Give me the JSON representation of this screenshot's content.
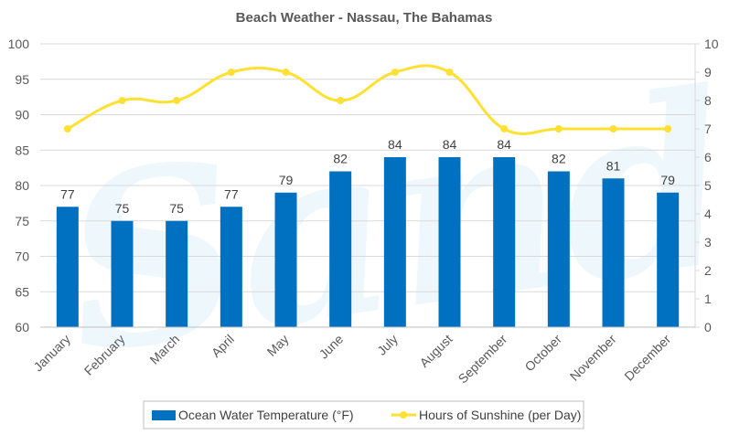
{
  "chart_data": {
    "type": "bar+line",
    "title": "Beach Weather - Nassau, The Bahamas",
    "categories": [
      "January",
      "February",
      "March",
      "April",
      "May",
      "June",
      "July",
      "August",
      "September",
      "October",
      "November",
      "December"
    ],
    "series": [
      {
        "name": "Ocean Water Temperature (°F)",
        "kind": "bar",
        "axis": "left",
        "color": "#0070c0",
        "values": [
          77,
          75,
          75,
          77,
          79,
          82,
          84,
          84,
          84,
          82,
          81,
          79
        ]
      },
      {
        "name": "Hours of Sunshine (per Day)",
        "kind": "line",
        "axis": "right",
        "color": "#ffe033",
        "values": [
          7,
          8,
          8,
          9,
          9,
          8,
          9,
          9,
          7,
          7,
          7,
          7
        ]
      }
    ],
    "y_left": {
      "min": 60,
      "max": 100,
      "step": 5,
      "ticks": [
        "60",
        "65",
        "70",
        "75",
        "80",
        "85",
        "90",
        "95",
        "100"
      ]
    },
    "y_right": {
      "min": 0,
      "max": 10,
      "step": 1,
      "ticks": [
        "0",
        "1",
        "2",
        "3",
        "4",
        "5",
        "6",
        "7",
        "8",
        "9",
        "10"
      ]
    },
    "grid": true,
    "legend": "bottom",
    "watermark": "Sandals"
  }
}
